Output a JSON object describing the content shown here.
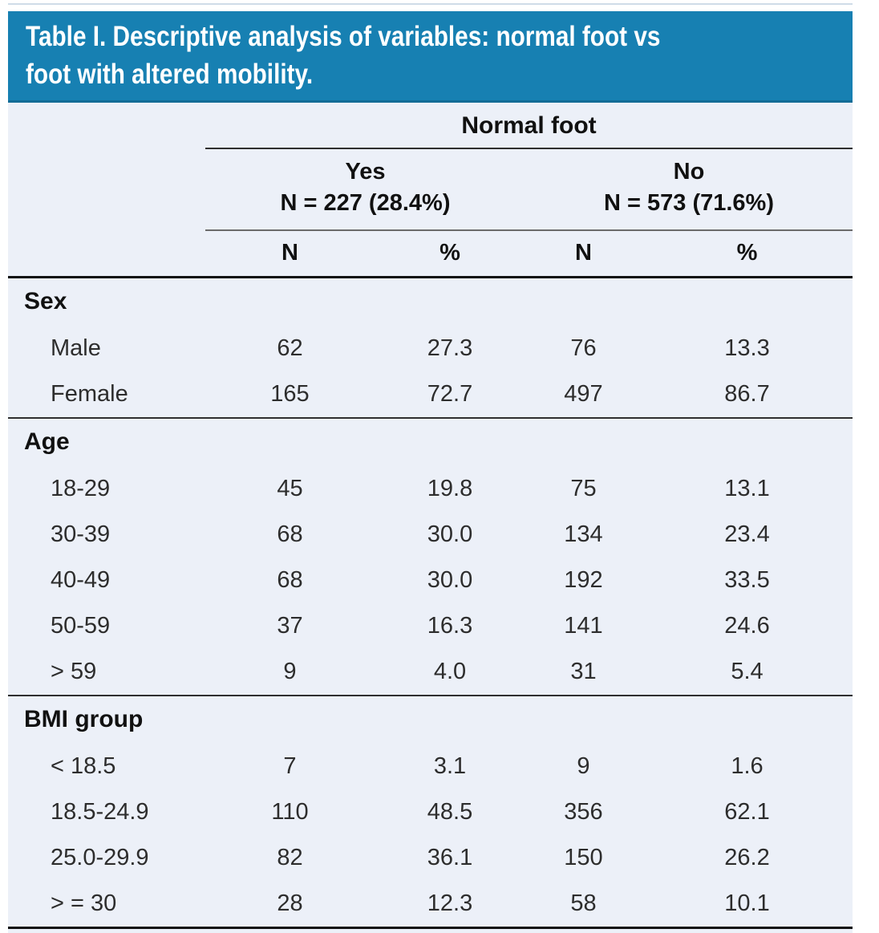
{
  "title": {
    "line1": "Table I. Descriptive analysis of variables: normal foot vs",
    "line2": "foot with altered mobility."
  },
  "table": {
    "group_header": "Normal foot",
    "groups": [
      {
        "label": "Yes",
        "n": "N = 227 (28.4%)"
      },
      {
        "label": "No",
        "n": "N = 573 (71.6%)"
      }
    ],
    "stat_headers": [
      "N",
      "%",
      "N",
      "%"
    ],
    "sections": [
      {
        "name": "Sex",
        "rows": [
          {
            "label": "Male",
            "values": [
              "62",
              "27.3",
              "76",
              "13.3"
            ]
          },
          {
            "label": "Female",
            "values": [
              "165",
              "72.7",
              "497",
              "86.7"
            ]
          }
        ]
      },
      {
        "name": "Age",
        "rows": [
          {
            "label": "18-29",
            "values": [
              "45",
              "19.8",
              "75",
              "13.1"
            ]
          },
          {
            "label": "30-39",
            "values": [
              "68",
              "30.0",
              "134",
              "23.4"
            ]
          },
          {
            "label": "40-49",
            "values": [
              "68",
              "30.0",
              "192",
              "33.5"
            ]
          },
          {
            "label": "50-59",
            "values": [
              "37",
              "16.3",
              "141",
              "24.6"
            ]
          },
          {
            "label": "> 59",
            "values": [
              "9",
              "4.0",
              "31",
              "5.4"
            ]
          }
        ]
      },
      {
        "name": "BMI group",
        "rows": [
          {
            "label": "< 18.5",
            "values": [
              "7",
              "3.1",
              "9",
              "1.6"
            ]
          },
          {
            "label": "18.5-24.9",
            "values": [
              "110",
              "48.5",
              "356",
              "62.1"
            ]
          },
          {
            "label": "25.0-29.9",
            "values": [
              "82",
              "36.1",
              "150",
              "26.2"
            ]
          },
          {
            "label": "> = 30",
            "values": [
              "28",
              "12.3",
              "58",
              "10.1"
            ]
          }
        ]
      }
    ]
  },
  "colors": {
    "title_bar": "#1780b2",
    "title_bar_edge": "#136c96",
    "title_text": "#ffffff",
    "table_background": "#ecf0f8",
    "heavy_rule": "#101010",
    "light_rule": "#6b6b6b",
    "text": "#2d2d2d"
  }
}
